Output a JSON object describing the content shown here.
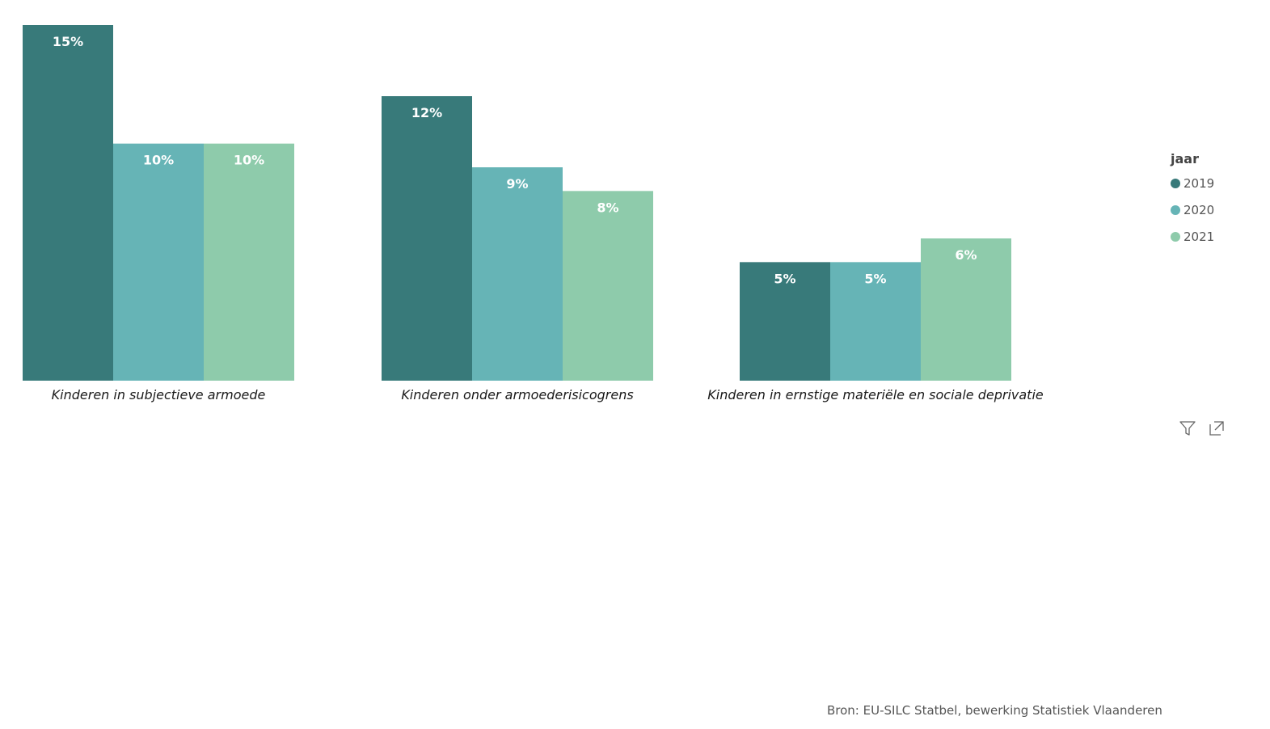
{
  "chart_data": {
    "type": "bar",
    "categories": [
      "Kinderen in subjectieve armoede",
      "Kinderen onder armoederisicogrens",
      "Kinderen in ernstige materiële en sociale deprivatie"
    ],
    "series": [
      {
        "name": "2019",
        "color": "#387a7a",
        "values": [
          15,
          12,
          5
        ]
      },
      {
        "name": "2020",
        "color": "#66b4b6",
        "values": [
          10,
          9,
          5
        ]
      },
      {
        "name": "2021",
        "color": "#8ecbab",
        "values": [
          10,
          8,
          6
        ]
      }
    ],
    "value_suffix": "%",
    "ylim": [
      0,
      15
    ],
    "legend_position": "right",
    "grid": false
  },
  "legend": {
    "title": "jaar",
    "items": [
      "2019",
      "2020",
      "2021"
    ],
    "colors": [
      "#387a7a",
      "#66b4b6",
      "#8ecbab"
    ]
  },
  "toolbar": {
    "icons": [
      "filter-icon",
      "focus-mode-icon"
    ]
  },
  "source": "Bron: EU-SILC Statbel, bewerking Statistiek Vlaanderen"
}
